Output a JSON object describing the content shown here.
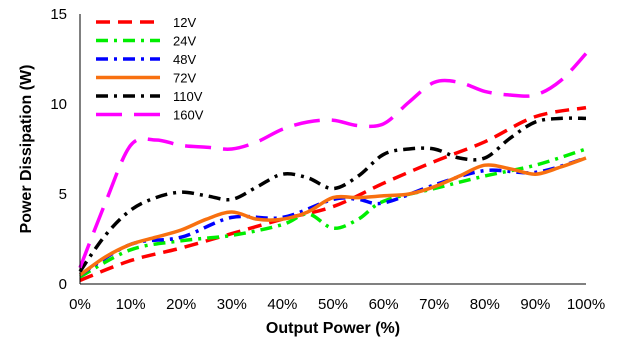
{
  "chart_data": {
    "type": "line",
    "title": "",
    "xlabel": "Output Power (%)",
    "ylabel": "Power Dissipation (W)",
    "xlim": [
      0,
      100
    ],
    "ylim": [
      0,
      15
    ],
    "x_ticks": [
      "0%",
      "10%",
      "20%",
      "30%",
      "40%",
      "50%",
      "60%",
      "70%",
      "80%",
      "90%",
      "100%"
    ],
    "y_ticks": [
      "0",
      "5",
      "10",
      "15"
    ],
    "grid": false,
    "legend_position": "top-left",
    "series": [
      {
        "name": "12V",
        "color": "#ff0000",
        "dash": "14,8",
        "points": [
          [
            0,
            0.2
          ],
          [
            10,
            1.3
          ],
          [
            20,
            2.0
          ],
          [
            30,
            2.8
          ],
          [
            40,
            3.6
          ],
          [
            50,
            4.3
          ],
          [
            60,
            5.6
          ],
          [
            70,
            6.8
          ],
          [
            80,
            7.9
          ],
          [
            90,
            9.3
          ],
          [
            100,
            9.8
          ]
        ]
      },
      {
        "name": "24V",
        "color": "#00ee00",
        "dash": "12,6,3,6",
        "points": [
          [
            0,
            0.4
          ],
          [
            10,
            1.9
          ],
          [
            20,
            2.4
          ],
          [
            30,
            2.7
          ],
          [
            40,
            3.3
          ],
          [
            45,
            3.9
          ],
          [
            50,
            3.1
          ],
          [
            55,
            3.6
          ],
          [
            60,
            4.6
          ],
          [
            70,
            5.3
          ],
          [
            80,
            6.0
          ],
          [
            90,
            6.6
          ],
          [
            100,
            7.5
          ]
        ]
      },
      {
        "name": "48V",
        "color": "#0000ff",
        "dash": "12,6,3,6",
        "points": [
          [
            0,
            0.5
          ],
          [
            10,
            2.2
          ],
          [
            20,
            2.6
          ],
          [
            30,
            3.7
          ],
          [
            40,
            3.7
          ],
          [
            50,
            4.7
          ],
          [
            55,
            4.7
          ],
          [
            60,
            4.5
          ],
          [
            70,
            5.5
          ],
          [
            80,
            6.3
          ],
          [
            90,
            6.2
          ],
          [
            100,
            7.0
          ]
        ]
      },
      {
        "name": "72V",
        "color": "#f87010",
        "dash": "",
        "points": [
          [
            0,
            0.5
          ],
          [
            5,
            1.5
          ],
          [
            10,
            2.2
          ],
          [
            15,
            2.6
          ],
          [
            20,
            3.0
          ],
          [
            25,
            3.6
          ],
          [
            30,
            4.0
          ],
          [
            35,
            3.6
          ],
          [
            40,
            3.6
          ],
          [
            45,
            4.0
          ],
          [
            50,
            4.8
          ],
          [
            55,
            4.8
          ],
          [
            60,
            4.9
          ],
          [
            65,
            5.0
          ],
          [
            70,
            5.4
          ],
          [
            75,
            6.0
          ],
          [
            80,
            6.6
          ],
          [
            85,
            6.4
          ],
          [
            90,
            6.1
          ],
          [
            95,
            6.5
          ],
          [
            100,
            7.0
          ]
        ]
      },
      {
        "name": "110V",
        "color": "#000000",
        "dash": "12,6,3,6",
        "points": [
          [
            0,
            0.7
          ],
          [
            5,
            2.7
          ],
          [
            10,
            4.1
          ],
          [
            15,
            4.8
          ],
          [
            20,
            5.1
          ],
          [
            25,
            4.9
          ],
          [
            30,
            4.7
          ],
          [
            35,
            5.4
          ],
          [
            40,
            6.1
          ],
          [
            45,
            5.9
          ],
          [
            50,
            5.3
          ],
          [
            55,
            6.0
          ],
          [
            60,
            7.2
          ],
          [
            65,
            7.5
          ],
          [
            70,
            7.5
          ],
          [
            75,
            7.0
          ],
          [
            80,
            7.0
          ],
          [
            85,
            8.1
          ],
          [
            90,
            9.0
          ],
          [
            95,
            9.2
          ],
          [
            100,
            9.2
          ]
        ]
      },
      {
        "name": "160V",
        "color": "#ff00ff",
        "dash": "26,12",
        "points": [
          [
            0,
            0.9
          ],
          [
            5,
            4.5
          ],
          [
            10,
            7.7
          ],
          [
            15,
            8.0
          ],
          [
            20,
            7.7
          ],
          [
            25,
            7.6
          ],
          [
            30,
            7.5
          ],
          [
            35,
            7.9
          ],
          [
            40,
            8.6
          ],
          [
            45,
            9.0
          ],
          [
            50,
            9.1
          ],
          [
            55,
            8.8
          ],
          [
            60,
            8.9
          ],
          [
            65,
            10.1
          ],
          [
            70,
            11.2
          ],
          [
            75,
            11.2
          ],
          [
            80,
            10.7
          ],
          [
            85,
            10.5
          ],
          [
            90,
            10.5
          ],
          [
            95,
            11.3
          ],
          [
            100,
            12.8
          ]
        ]
      }
    ]
  }
}
